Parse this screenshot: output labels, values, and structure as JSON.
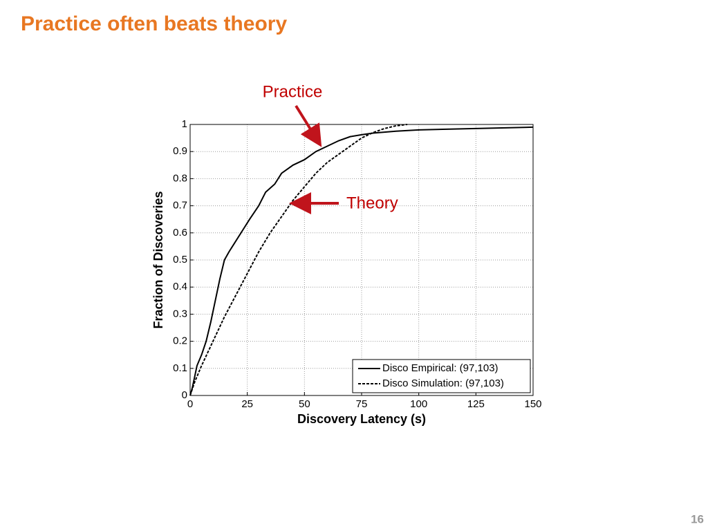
{
  "slide": {
    "title": "Practice often beats theory",
    "page_number": "16"
  },
  "chart_data": {
    "type": "line",
    "xlabel": "Discovery Latency (s)",
    "ylabel": "Fraction of Discoveries",
    "xlim": [
      0,
      150
    ],
    "ylim": [
      0,
      1
    ],
    "xticks": [
      0,
      25,
      50,
      75,
      100,
      125,
      150
    ],
    "yticks": [
      0,
      0.1,
      0.2,
      0.3,
      0.4,
      0.5,
      0.6,
      0.7,
      0.8,
      0.9,
      1
    ],
    "grid": true,
    "legend": "lower right",
    "annotations": [
      "Practice",
      "Theory"
    ],
    "series": [
      {
        "name": "Disco Empirical: (97,103)",
        "color": "#000000",
        "linestyle": "solid",
        "x": [
          0,
          1,
          2,
          3,
          5,
          7,
          9,
          11,
          13,
          15,
          17,
          20,
          23,
          26,
          30,
          33,
          37,
          40,
          45,
          50,
          55,
          60,
          65,
          70,
          75,
          80,
          90,
          100,
          125,
          150
        ],
        "values": [
          0,
          0.03,
          0.07,
          0.11,
          0.15,
          0.2,
          0.27,
          0.35,
          0.43,
          0.5,
          0.53,
          0.57,
          0.61,
          0.65,
          0.7,
          0.75,
          0.78,
          0.82,
          0.85,
          0.87,
          0.9,
          0.92,
          0.94,
          0.955,
          0.962,
          0.968,
          0.975,
          0.98,
          0.985,
          0.99
        ]
      },
      {
        "name": "Disco Simulation: (97,103)",
        "color": "#000000",
        "linestyle": "dashed",
        "x": [
          0,
          2,
          5,
          10,
          15,
          20,
          25,
          30,
          35,
          40,
          45,
          50,
          55,
          60,
          65,
          70,
          75,
          80,
          85,
          90,
          95
        ],
        "values": [
          0,
          0.05,
          0.11,
          0.2,
          0.29,
          0.37,
          0.45,
          0.53,
          0.6,
          0.66,
          0.72,
          0.77,
          0.82,
          0.86,
          0.89,
          0.92,
          0.95,
          0.97,
          0.985,
          0.995,
          1
        ]
      }
    ]
  }
}
